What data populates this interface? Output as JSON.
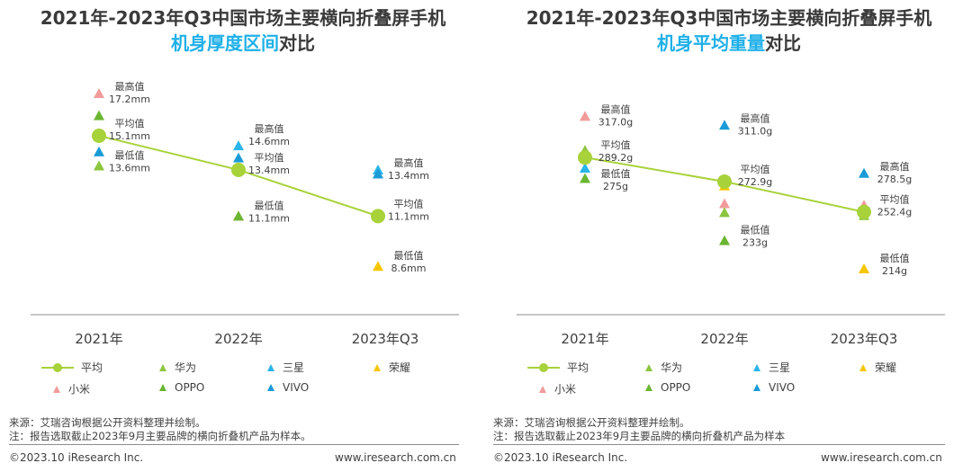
{
  "colors": {
    "avg_line": "#a8d23a",
    "xiaomi": "#f29b9b",
    "huawei": "#8cc63f",
    "samsung": "#29b5e8",
    "honor": "#f6c700",
    "oppo": "#6ab632",
    "vivo": "#1a9bd7",
    "title_highlight": "#1fb0e8"
  },
  "charts": [
    {
      "title_line1": "2021年-2023年Q3中国市场主要横向折叠屏手机",
      "title_line2_highlight": "机身厚度区间",
      "title_line2_rest": "对比"
    },
    {
      "title_line1": "2021年-2023年Q3中国市场主要横向折叠屏手机",
      "title_line2_highlight": "机身平均重量",
      "title_line2_rest": "对比"
    }
  ],
  "legend": {
    "avg": "平均",
    "huawei": "华为",
    "samsung": "三星",
    "honor": "荣耀",
    "xiaomi": "小米",
    "oppo": "OPPO",
    "vivo": "VIVO"
  },
  "footer": {
    "source": "来源：艾瑞咨询根据公开资料整理并绘制。",
    "note_left": "注：报告选取截止2023年9月主要品牌的横向折叠机产品为样本。",
    "note_right": "注：报告选取截止2023年9月主要品牌的横向折叠机产品为样本",
    "copyright": "©2023.10 iResearch Inc.",
    "website": "www.iresearch.com.cn"
  },
  "chart_data": [
    {
      "type": "scatter",
      "title": "2021年-2023年Q3中国市场主要横向折叠屏手机机身厚度区间对比",
      "categories": [
        "2021年",
        "2022年",
        "2023年Q3"
      ],
      "unit": "mm",
      "ylim": [
        7,
        18.5
      ],
      "avg_label": "平均值",
      "max_label": "最高值",
      "min_label": "最低值",
      "average": [
        15.1,
        13.4,
        11.1
      ],
      "max": [
        17.2,
        14.6,
        13.4
      ],
      "min": [
        13.6,
        11.1,
        8.6
      ],
      "average_text": [
        "15.1mm",
        "13.4mm",
        "11.1mm"
      ],
      "max_text": [
        "17.2mm",
        "14.6mm",
        "13.4mm"
      ],
      "min_text": [
        "13.6mm",
        "11.1mm",
        "8.6mm"
      ],
      "series": [
        {
          "name": "小米",
          "key": "xiaomi",
          "values": [
            17.2,
            11.1,
            11.1
          ]
        },
        {
          "name": "华为",
          "key": "huawei",
          "values": [
            13.6,
            13.4,
            null
          ]
        },
        {
          "name": "三星",
          "key": "samsung",
          "values": [
            null,
            14.6,
            13.4
          ]
        },
        {
          "name": "荣耀",
          "key": "honor",
          "values": [
            null,
            13.4,
            8.6
          ]
        },
        {
          "name": "OPPO",
          "key": "oppo",
          "values": [
            16.1,
            11.1,
            null
          ]
        },
        {
          "name": "VIVO",
          "key": "vivo",
          "values": [
            14.3,
            14.0,
            13.2
          ]
        }
      ]
    },
    {
      "type": "scatter",
      "title": "2021年-2023年Q3中国市场主要横向折叠屏手机机身平均重量对比",
      "categories": [
        "2021年",
        "2022年",
        "2023年Q3"
      ],
      "unit": "g",
      "ylim": [
        200,
        330
      ],
      "avg_label": "平均值",
      "max_label": "最高值",
      "min_label": "最低值",
      "average": [
        289.2,
        272.9,
        252.4
      ],
      "max": [
        317.0,
        311.0,
        278.5
      ],
      "min": [
        275,
        233,
        214
      ],
      "average_text": [
        "289.2g",
        "272.9g",
        "252.4g"
      ],
      "max_text": [
        "317.0g",
        "311.0g",
        "278.5g"
      ],
      "min_text": [
        "275g",
        "233g",
        "214g"
      ],
      "series": [
        {
          "name": "小米",
          "key": "xiaomi",
          "values": [
            317.0,
            258.0,
            257.0
          ]
        },
        {
          "name": "华为",
          "key": "huawei",
          "values": [
            294.0,
            252.0,
            250.0
          ]
        },
        {
          "name": "三星",
          "key": "samsung",
          "values": [
            282.0,
            273.0,
            null
          ]
        },
        {
          "name": "荣耀",
          "key": "honor",
          "values": [
            null,
            270.0,
            214.0
          ]
        },
        {
          "name": "OPPO",
          "key": "oppo",
          "values": [
            275.0,
            233.0,
            null
          ]
        },
        {
          "name": "VIVO",
          "key": "vivo",
          "values": [
            null,
            311.0,
            278.5
          ]
        }
      ]
    }
  ]
}
